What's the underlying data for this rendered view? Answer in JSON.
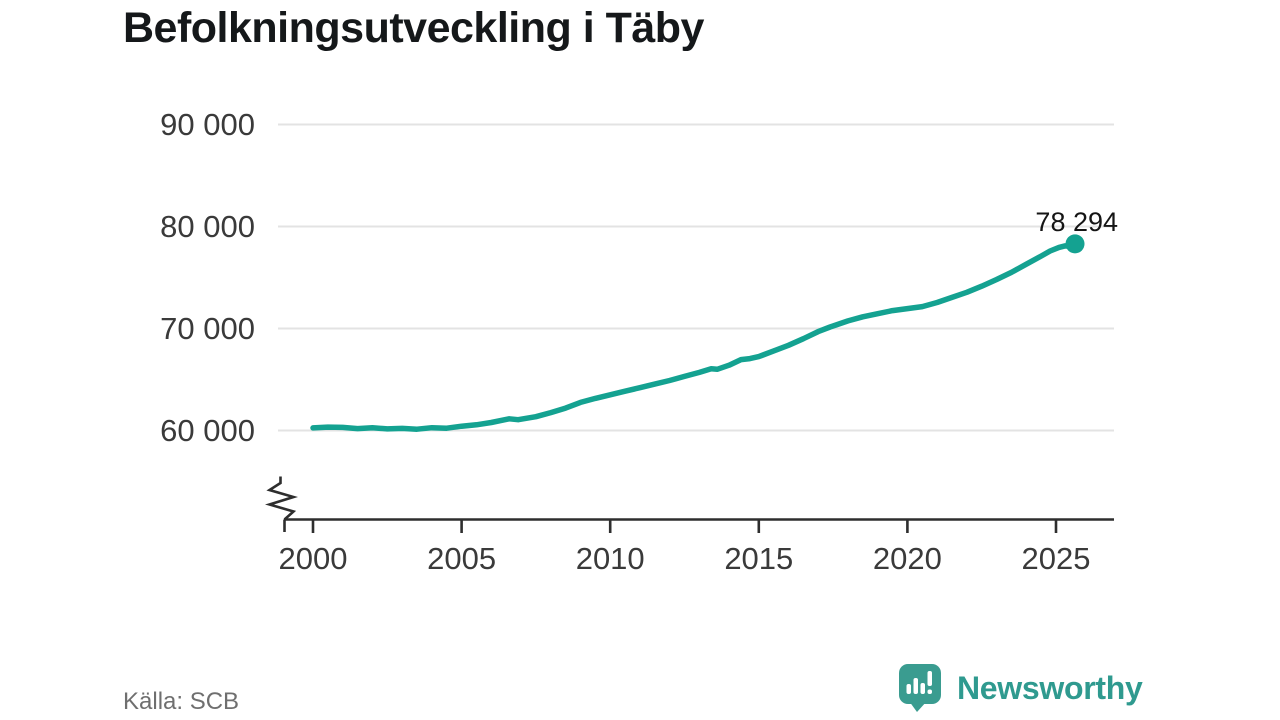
{
  "title": "Befolkningsutveckling i Täby",
  "source": {
    "label": "Källa: SCB"
  },
  "branding": {
    "name": "Newsworthy",
    "icon": "newsworthy-bar-chart-bubble-icon"
  },
  "colors": {
    "line": "#14A291",
    "end_dot": "#14A291",
    "grid": "#E3E3E3",
    "axis": "#2E2E2E",
    "title_text": "#15181A",
    "tick_text": "#3A3A3A",
    "annotation_text": "#151515",
    "source_text": "#6F6F6F",
    "brand_text": "#2F9A8F",
    "brand_icon": "#3A9C90",
    "background": "#FFFFFF"
  },
  "chart_data": {
    "type": "line",
    "title": "Befolkningsutveckling i Täby",
    "xlabel": "",
    "ylabel": "",
    "legend": "none",
    "grid": "horizontal",
    "y_axis": {
      "tick_values": [
        60000,
        70000,
        80000,
        90000
      ],
      "tick_labels": [
        "60 000",
        "70 000",
        "80 000",
        "90 000"
      ],
      "axis_break": true
    },
    "x_axis": {
      "tick_values": [
        2000,
        2005,
        2010,
        2015,
        2020,
        2025
      ],
      "tick_labels": [
        "2000",
        "2005",
        "2010",
        "2015",
        "2020",
        "2025"
      ],
      "range": [
        2000,
        2026.9
      ]
    },
    "end_annotation": {
      "label": "78 294",
      "value": 78294,
      "x": 2025.64
    },
    "series": [
      {
        "name": "Befolkning i Täby",
        "points": [
          [
            2000.0,
            60250
          ],
          [
            2000.5,
            60330
          ],
          [
            2001.0,
            60300
          ],
          [
            2001.5,
            60190
          ],
          [
            2002.0,
            60270
          ],
          [
            2002.5,
            60160
          ],
          [
            2003.0,
            60210
          ],
          [
            2003.5,
            60130
          ],
          [
            2004.0,
            60270
          ],
          [
            2004.5,
            60230
          ],
          [
            2005.0,
            60420
          ],
          [
            2005.5,
            60560
          ],
          [
            2006.0,
            60780
          ],
          [
            2006.6,
            61150
          ],
          [
            2006.9,
            61060
          ],
          [
            2007.5,
            61350
          ],
          [
            2008.0,
            61750
          ],
          [
            2008.5,
            62200
          ],
          [
            2009.0,
            62750
          ],
          [
            2009.5,
            63150
          ],
          [
            2010.0,
            63500
          ],
          [
            2010.5,
            63850
          ],
          [
            2011.0,
            64200
          ],
          [
            2011.5,
            64550
          ],
          [
            2012.0,
            64900
          ],
          [
            2012.5,
            65300
          ],
          [
            2013.0,
            65700
          ],
          [
            2013.4,
            66050
          ],
          [
            2013.6,
            66000
          ],
          [
            2014.0,
            66400
          ],
          [
            2014.4,
            66950
          ],
          [
            2014.7,
            67050
          ],
          [
            2015.0,
            67250
          ],
          [
            2015.5,
            67800
          ],
          [
            2016.0,
            68350
          ],
          [
            2016.5,
            69000
          ],
          [
            2017.0,
            69700
          ],
          [
            2017.4,
            70150
          ],
          [
            2018.0,
            70750
          ],
          [
            2018.5,
            71150
          ],
          [
            2019.0,
            71450
          ],
          [
            2019.5,
            71750
          ],
          [
            2020.0,
            71950
          ],
          [
            2020.5,
            72150
          ],
          [
            2021.0,
            72550
          ],
          [
            2021.5,
            73050
          ],
          [
            2022.0,
            73550
          ],
          [
            2022.5,
            74150
          ],
          [
            2023.0,
            74800
          ],
          [
            2023.5,
            75500
          ],
          [
            2024.0,
            76300
          ],
          [
            2024.5,
            77100
          ],
          [
            2024.8,
            77600
          ],
          [
            2025.1,
            77950
          ],
          [
            2025.3,
            78100
          ],
          [
            2025.45,
            78060
          ],
          [
            2025.64,
            78294
          ]
        ]
      }
    ]
  }
}
